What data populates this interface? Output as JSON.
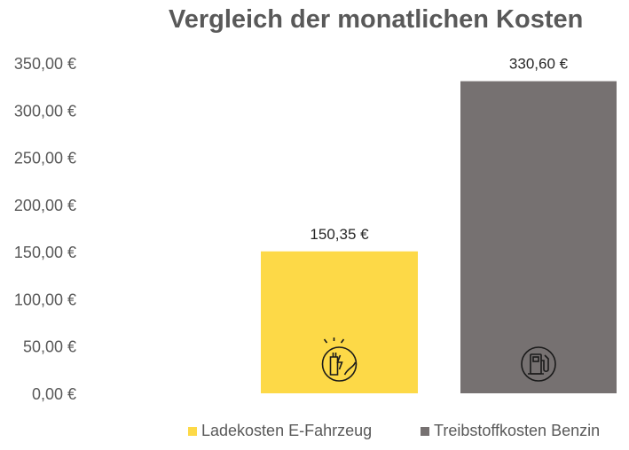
{
  "chart_data": {
    "type": "bar",
    "title": "Vergleich der monatlichen Kosten",
    "xlabel": "",
    "ylabel": "",
    "ylim": [
      0,
      350
    ],
    "yticks": [
      "0,00 €",
      "50,00 €",
      "100,00 €",
      "150,00 €",
      "200,00 €",
      "250,00 €",
      "300,00 €",
      "350,00 €"
    ],
    "grid": false,
    "legend_position": "bottom",
    "series": [
      {
        "name": "Ladekosten E-Fahrzeug",
        "value": 150.35,
        "label": "150,35 €",
        "color": "#FDD947",
        "icon": "ev-charging-icon"
      },
      {
        "name": "Treibstoffkosten Benzin",
        "value": 330.6,
        "label": "330,60 €",
        "color": "#767171",
        "icon": "fuel-pump-icon"
      }
    ]
  }
}
